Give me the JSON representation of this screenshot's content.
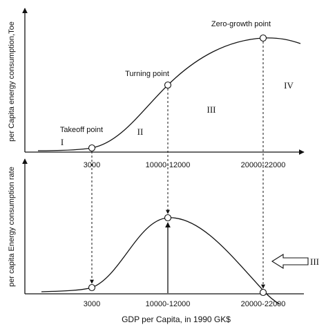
{
  "top_panel": {
    "y_label": "per Capita energy consumption,Toe",
    "points": [
      {
        "label": "Takeoff point"
      },
      {
        "label": "Turning point"
      },
      {
        "label": "Zero-growth point"
      }
    ],
    "stages": [
      "I",
      "II",
      "III",
      "IV"
    ],
    "ticks": [
      "3000",
      "10000-12000",
      "20000-22000"
    ]
  },
  "bottom_panel": {
    "y_label": "per capita Energy consumption rate",
    "ticks": [
      "3000",
      "10000-12000",
      "20000-22000"
    ],
    "arrow_label": "III"
  },
  "x_label": "GDP per Capita, in 1990 GK$"
}
